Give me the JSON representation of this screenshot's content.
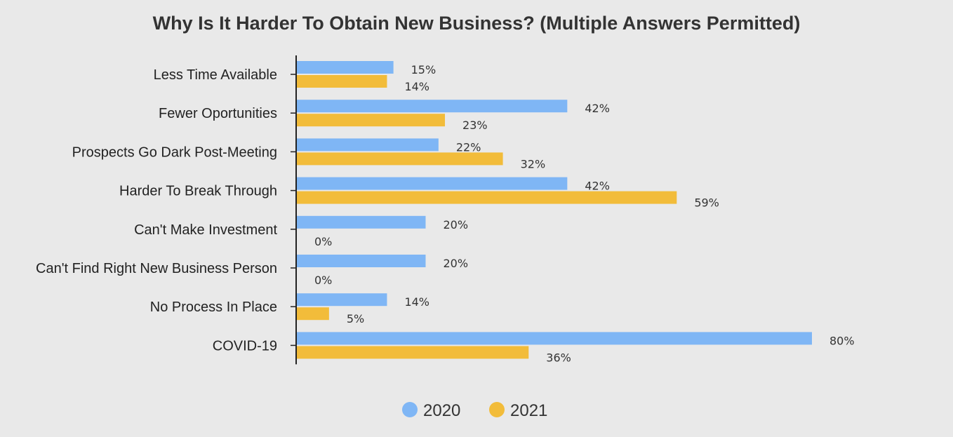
{
  "chart_data": {
    "type": "bar",
    "orientation": "horizontal",
    "title": "Why Is It Harder To Obtain New Business? (Multiple Answers Permitted)",
    "categories": [
      "Less Time Available",
      "Fewer Oportunities",
      "Prospects Go Dark Post-Meeting",
      "Harder To Break Through",
      "Can't Make Investment",
      "Can't Find Right New Business Person",
      "No Process In Place",
      "COVID-19"
    ],
    "series": [
      {
        "name": "2020",
        "color": "#7fb6f5",
        "values": [
          15,
          42,
          22,
          42,
          20,
          20,
          14,
          80
        ],
        "labels": [
          "15%",
          "42%",
          "22%",
          "42%",
          "20%",
          "20%",
          "14%",
          "80%"
        ]
      },
      {
        "name": "2021",
        "color": "#f2bc3a",
        "values": [
          14,
          23,
          32,
          59,
          0,
          0,
          5,
          36
        ],
        "labels": [
          "14%",
          "23%",
          "32%",
          "59%",
          "0%",
          "0%",
          "5%",
          "36%"
        ]
      }
    ],
    "xlim": [
      0,
      80
    ],
    "grid": false,
    "legend_position": "bottom"
  }
}
